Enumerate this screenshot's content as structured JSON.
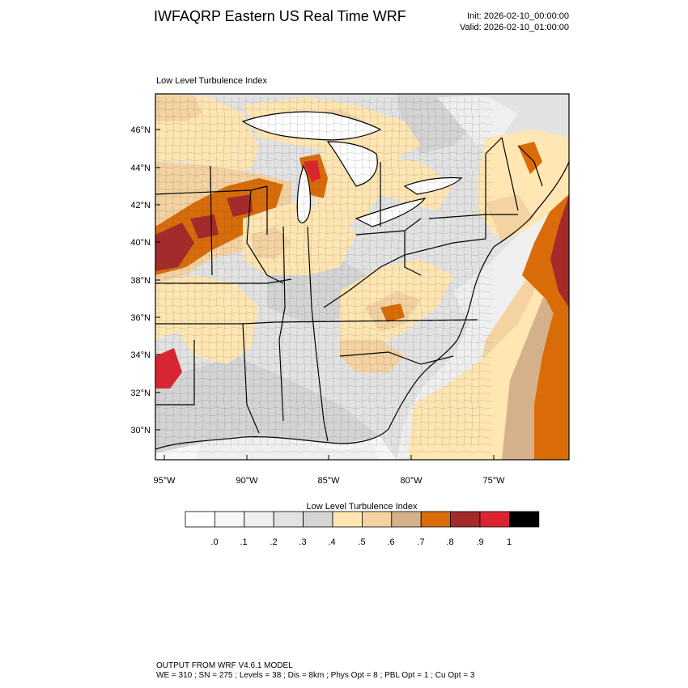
{
  "header": {
    "title": "IWFAQRP Eastern US Real Time WRF",
    "init": "Init: 2026-02-10_00:00:00",
    "valid": "Valid: 2026-02-10_01:00:00"
  },
  "map": {
    "field_label": "Low Level Turbulence Index",
    "lat_labels": [
      "46°N",
      "44°N",
      "42°N",
      "40°N",
      "38°N",
      "36°N",
      "34°N",
      "32°N",
      "30°N"
    ],
    "lon_labels": [
      "95°W",
      "90°W",
      "85°W",
      "80°W",
      "75°W"
    ]
  },
  "colorbar": {
    "title": "Low Level Turbulence Index",
    "colors": [
      "#ffffff",
      "#f7f7f7",
      "#efefef",
      "#e2e2e2",
      "#d4d4d4",
      "#ffe6b3",
      "#f4d2a2",
      "#d4b18a",
      "#d96c08",
      "#a52a2a",
      "#dc2430",
      "#000000"
    ],
    "labels": [
      ".0",
      ".1",
      ".2",
      ".3",
      ".4",
      ".5",
      ".6",
      ".7",
      ".8",
      ".9",
      "1"
    ]
  },
  "footer": {
    "line1": "OUTPUT FROM WRF V4.6.1 MODEL",
    "line2": "WE = 310 ; SN = 275 ; Levels = 38 ; Dis = 8km ; Phys Opt = 8 ; PBL Opt = 1 ; Cu Opt = 3"
  }
}
